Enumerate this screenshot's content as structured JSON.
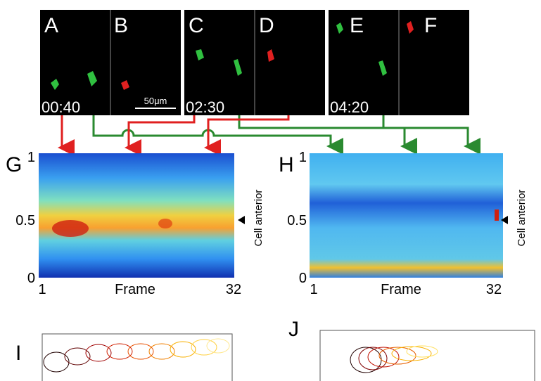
{
  "panel_letters": [
    "A",
    "B",
    "C",
    "D",
    "E",
    "F",
    "G",
    "H",
    "I",
    "J"
  ],
  "timestamps": [
    "00:40",
    "02:30",
    "04:20"
  ],
  "scale_bar": "50μm",
  "heatmaps": [
    {
      "y_ticks": [
        "1",
        "0.5",
        "0"
      ],
      "x_start": "1",
      "x_label": "Frame",
      "x_end": "32",
      "side_label": "Cell anterior"
    },
    {
      "y_ticks": [
        "1",
        "0.5",
        "0"
      ],
      "x_start": "1",
      "x_label": "Frame",
      "x_end": "32",
      "side_label": "Cell anterior"
    }
  ]
}
